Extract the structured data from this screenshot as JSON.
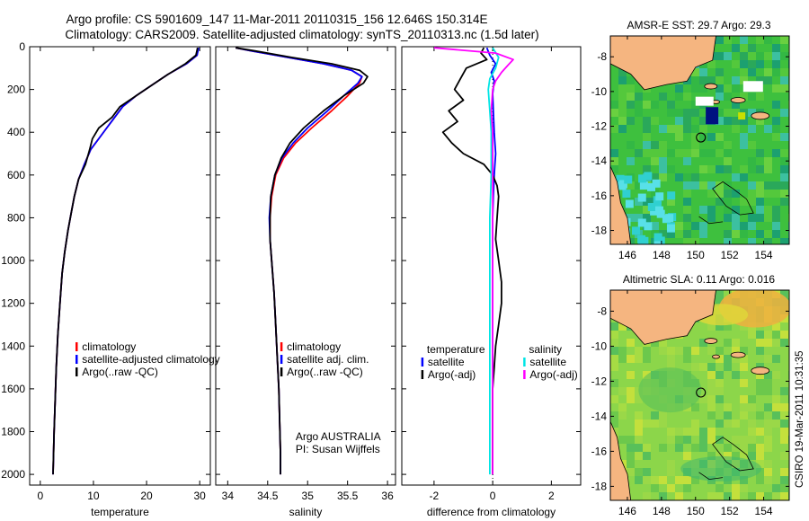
{
  "header": {
    "line1": "Argo profile: CS 5901609_147 11-Mar-2011 20110315_156 12.646S 150.314E",
    "line2": "Climatology: CARS2009. Satellite-adjusted climatology: synTS_20110313.nc (1.5d later)"
  },
  "chart_data": [
    {
      "type": "line",
      "panel": "temperature",
      "xlabel": "temperature",
      "ylabel": "",
      "xlim": [
        -2,
        32
      ],
      "ylim": [
        2050,
        0
      ],
      "y_inverted": true,
      "xticks": [
        0,
        10,
        20,
        30
      ],
      "yticks": [
        0,
        200,
        400,
        600,
        800,
        1000,
        1200,
        1400,
        1600,
        1800,
        2000
      ],
      "legend": [
        "climatology",
        "satellite-adjusted climatology",
        "Argo(..raw -QC)"
      ],
      "legend_position": "bottom-right",
      "series": [
        {
          "name": "climatology",
          "color": "#ff0000",
          "x": [
            29.7,
            29.5,
            27.5,
            24,
            21,
            18,
            15.5,
            14,
            12.5,
            11,
            9.5,
            8.3,
            7.2,
            6.4,
            5.8,
            5.2,
            4.6,
            4.1,
            3.7,
            3.3,
            3.0,
            2.8,
            2.6,
            2.5,
            2.4
          ],
          "y": [
            5,
            40,
            80,
            130,
            180,
            230,
            280,
            330,
            380,
            430,
            480,
            550,
            620,
            700,
            780,
            860,
            960,
            1060,
            1200,
            1350,
            1500,
            1650,
            1800,
            1900,
            2000
          ]
        },
        {
          "name": "satellite-adjusted climatology",
          "color": "#0000ff",
          "x": [
            29.8,
            29.5,
            27.5,
            24,
            21,
            18,
            15.5,
            14,
            12.5,
            11,
            9.5,
            8.3,
            7.2,
            6.4,
            5.8,
            5.2,
            4.6,
            4.1,
            3.7,
            3.3,
            3.0,
            2.8,
            2.6,
            2.5,
            2.4
          ],
          "y": [
            5,
            40,
            80,
            130,
            180,
            230,
            280,
            330,
            380,
            430,
            480,
            550,
            620,
            700,
            780,
            860,
            960,
            1060,
            1200,
            1350,
            1500,
            1650,
            1800,
            1900,
            2000
          ]
        },
        {
          "name": "Argo(..raw -QC)",
          "color": "#000000",
          "x": [
            29.6,
            29.3,
            27.3,
            24,
            21,
            18,
            15,
            13.5,
            11,
            9.8,
            9.3,
            8.5,
            7.2,
            6.4,
            5.8,
            5.2,
            4.6,
            4.1,
            3.7,
            3.3,
            3.0,
            2.8,
            2.6,
            2.5,
            2.4
          ],
          "y": [
            5,
            40,
            80,
            130,
            180,
            230,
            280,
            330,
            380,
            430,
            480,
            550,
            620,
            700,
            780,
            860,
            960,
            1060,
            1200,
            1350,
            1500,
            1650,
            1800,
            1900,
            2000
          ]
        }
      ]
    },
    {
      "type": "line",
      "panel": "salinity",
      "xlabel": "salinity",
      "ylabel": "",
      "xlim": [
        33.85,
        36.1
      ],
      "ylim": [
        2050,
        0
      ],
      "y_inverted": true,
      "xticks": [
        34,
        34.5,
        35,
        35.5,
        36
      ],
      "yticks": [
        0,
        200,
        400,
        600,
        800,
        1000,
        1200,
        1400,
        1600,
        1800,
        2000
      ],
      "legend": [
        "climatology",
        "satellite adj. clim.",
        "Argo(..raw -QC)"
      ],
      "legend_position": "bottom-right",
      "annotation": [
        "Argo AUSTRALIA",
        "PI: Susan Wijffels"
      ],
      "series": [
        {
          "name": "climatology",
          "color": "#ff0000",
          "x": [
            34.1,
            34.3,
            34.75,
            35.2,
            35.55,
            35.68,
            35.65,
            35.5,
            35.3,
            35.05,
            34.85,
            34.7,
            34.6,
            34.55,
            34.53,
            34.53,
            34.55,
            34.58,
            34.6,
            34.62,
            34.64,
            34.65,
            34.66,
            34.66
          ],
          "y": [
            5,
            20,
            50,
            80,
            110,
            140,
            170,
            230,
            300,
            380,
            450,
            520,
            600,
            700,
            800,
            900,
            1000,
            1150,
            1300,
            1450,
            1600,
            1750,
            1900,
            2000
          ]
        },
        {
          "name": "satellite adj. clim.",
          "color": "#0000ff",
          "x": [
            34.1,
            34.3,
            34.75,
            35.2,
            35.55,
            35.68,
            35.63,
            35.45,
            35.25,
            35.0,
            34.82,
            34.68,
            34.59,
            34.54,
            34.52,
            34.53,
            34.55,
            34.58,
            34.6,
            34.62,
            34.64,
            34.65,
            34.66,
            34.66
          ],
          "y": [
            5,
            20,
            50,
            80,
            110,
            140,
            170,
            230,
            300,
            380,
            450,
            520,
            600,
            700,
            800,
            900,
            1000,
            1150,
            1300,
            1450,
            1600,
            1750,
            1900,
            2000
          ]
        },
        {
          "name": "Argo(..raw -QC)",
          "color": "#000000",
          "x": [
            34.1,
            34.35,
            34.8,
            35.3,
            35.65,
            35.75,
            35.7,
            35.45,
            35.2,
            34.95,
            34.78,
            34.67,
            34.59,
            34.54,
            34.53,
            34.53,
            34.55,
            34.58,
            34.6,
            34.62,
            34.64,
            34.65,
            34.66,
            34.66
          ],
          "y": [
            5,
            20,
            50,
            80,
            110,
            140,
            170,
            230,
            300,
            380,
            450,
            520,
            600,
            700,
            800,
            900,
            1000,
            1150,
            1300,
            1450,
            1600,
            1750,
            1900,
            2000
          ]
        }
      ]
    },
    {
      "type": "line",
      "panel": "difference",
      "xlabel": "difference from climatology",
      "ylabel": "",
      "xlim": [
        -3.1,
        3.0
      ],
      "ylim": [
        2050,
        0
      ],
      "y_inverted": true,
      "xticks": [
        -2,
        0,
        2
      ],
      "yticks": [
        0,
        200,
        400,
        600,
        800,
        1000,
        1200,
        1400,
        1600,
        1800,
        2000
      ],
      "legend_groups": [
        {
          "title": "temperature",
          "entries": [
            "satellite",
            "Argo(-adj)"
          ]
        },
        {
          "title": "salinity",
          "entries": [
            "satellite",
            "Argo(-adj)"
          ]
        }
      ],
      "legend_position": "bottom",
      "series": [
        {
          "name": "temperature satellite",
          "color": "#0000ff",
          "x": [
            -0.2,
            -0.1,
            0.1,
            -0.05,
            0.05,
            0.0,
            0.02,
            0.05,
            0.1,
            0.05,
            0.02,
            0.0,
            0.0,
            0.0,
            0.0,
            0.0,
            0.0
          ],
          "y": [
            5,
            40,
            80,
            120,
            160,
            220,
            300,
            400,
            500,
            600,
            700,
            800,
            1000,
            1200,
            1400,
            1600,
            2000
          ]
        },
        {
          "name": "temperature Argo(-adj)",
          "color": "#000000",
          "x": [
            -0.3,
            -0.4,
            -0.2,
            -0.9,
            -1.1,
            -1.3,
            -1.0,
            -1.5,
            -1.2,
            -1.7,
            -1.4,
            -1.0,
            -0.3,
            0.0,
            0.15,
            0.2,
            0.15,
            0.1,
            0.2,
            0.3,
            0.3,
            0.2,
            0.1,
            0.05,
            0.0,
            0.0,
            0.0
          ],
          "y": [
            5,
            30,
            60,
            100,
            150,
            200,
            250,
            300,
            350,
            400,
            450,
            500,
            550,
            600,
            650,
            700,
            800,
            900,
            1000,
            1100,
            1200,
            1300,
            1400,
            1500,
            1600,
            1800,
            2000
          ]
        },
        {
          "name": "salinity satellite",
          "color": "#00e5e5",
          "x": [
            0.0,
            0.2,
            0.1,
            -0.1,
            -0.15,
            -0.1,
            -0.05,
            -0.05,
            -0.05,
            -0.1,
            -0.1,
            -0.1,
            -0.1,
            -0.1,
            -0.1,
            -0.1
          ],
          "y": [
            5,
            50,
            100,
            150,
            200,
            300,
            400,
            500,
            600,
            800,
            1000,
            1200,
            1400,
            1600,
            1800,
            2000
          ]
        },
        {
          "name": "salinity Argo(-adj)",
          "color": "#ff00ff",
          "x": [
            -2.0,
            0.1,
            0.7,
            0.5,
            0.3,
            0.1,
            0.0,
            -0.05,
            0.0,
            0.0,
            0.0,
            0.0,
            0.0,
            0.0
          ],
          "y": [
            5,
            30,
            60,
            90,
            120,
            160,
            200,
            300,
            400,
            600,
            800,
            1000,
            1400,
            2000
          ]
        }
      ]
    },
    {
      "type": "heatmap",
      "panel": "sst_map",
      "title": "AMSR-E SST: 29.7 Argo: 29.3",
      "xlim": [
        145,
        155.5
      ],
      "ylim": [
        -18.8,
        -6.8
      ],
      "xticks": [
        146,
        148,
        150,
        152,
        154
      ],
      "yticks": [
        -8,
        -10,
        -12,
        -14,
        -16,
        -18
      ],
      "marker": {
        "lon": 150.314,
        "lat": -12.646
      }
    },
    {
      "type": "heatmap",
      "panel": "sla_map",
      "title": "Altimetric SLA: 0.11 Argo: 0.016",
      "xlim": [
        145,
        155.5
      ],
      "ylim": [
        -18.8,
        -6.8
      ],
      "xticks": [
        146,
        148,
        150,
        152,
        154
      ],
      "yticks": [
        -8,
        -10,
        -12,
        -14,
        -16,
        -18
      ],
      "marker": {
        "lon": 150.314,
        "lat": -12.646
      }
    }
  ],
  "footer_stamp": "CSIRO 19-Mar-2011 10:31:35",
  "colors": {
    "climatology": "#ff0000",
    "satellite": "#0000ff",
    "argo": "#000000",
    "sal_satellite": "#00e5e5",
    "sal_argo": "#ff00ff",
    "land": "#f5b580",
    "sea_green": "#4cc04c"
  }
}
